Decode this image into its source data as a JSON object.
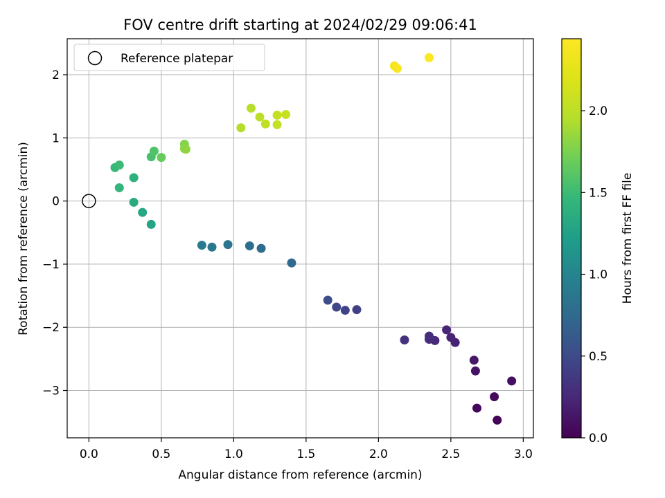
{
  "chart_data": {
    "type": "scatter",
    "title": "FOV centre drift starting at 2024/02/29 09:06:41",
    "xlabel": "Angular distance from reference (arcmin)",
    "ylabel": "Rotation from reference (arcmin)",
    "xlim": [
      -0.15,
      3.07
    ],
    "ylim": [
      -3.75,
      2.57
    ],
    "xticks": [
      0.0,
      0.5,
      1.0,
      1.5,
      2.0,
      2.5,
      3.0
    ],
    "xtick_labels": [
      "0.0",
      "0.5",
      "1.0",
      "1.5",
      "2.0",
      "2.5",
      "3.0"
    ],
    "yticks": [
      -3,
      -2,
      -1,
      0,
      1,
      2
    ],
    "ytick_labels": [
      "−3",
      "−2",
      "−1",
      "0",
      "1",
      "2"
    ],
    "grid": true,
    "colormap": "viridis",
    "colorbar": {
      "label": "Hours from first FF file",
      "range": [
        0.0,
        2.44
      ],
      "ticks": [
        0.0,
        0.5,
        1.0,
        1.5,
        2.0
      ],
      "tick_labels": [
        "0.0",
        "0.5",
        "1.0",
        "1.5",
        "2.0"
      ]
    },
    "legend": {
      "location": "upper-left",
      "entries": [
        {
          "label": "Reference platepar",
          "marker": "open-circle"
        }
      ]
    },
    "reference_point": {
      "x": 0.0,
      "y": 0.0
    },
    "points": [
      {
        "x": 2.82,
        "y": -3.47,
        "hours": 0.02
      },
      {
        "x": 2.68,
        "y": -3.28,
        "hours": 0.04
      },
      {
        "x": 2.8,
        "y": -3.1,
        "hours": 0.06
      },
      {
        "x": 2.92,
        "y": -2.85,
        "hours": 0.09
      },
      {
        "x": 2.67,
        "y": -2.69,
        "hours": 0.11
      },
      {
        "x": 2.66,
        "y": -2.52,
        "hours": 0.14
      },
      {
        "x": 2.53,
        "y": -2.24,
        "hours": 0.2
      },
      {
        "x": 2.5,
        "y": -2.16,
        "hours": 0.22
      },
      {
        "x": 2.47,
        "y": -2.04,
        "hours": 0.24
      },
      {
        "x": 2.39,
        "y": -2.21,
        "hours": 0.26
      },
      {
        "x": 2.35,
        "y": -2.19,
        "hours": 0.28
      },
      {
        "x": 2.35,
        "y": -2.14,
        "hours": 0.29
      },
      {
        "x": 2.18,
        "y": -2.2,
        "hours": 0.31
      },
      {
        "x": 1.85,
        "y": -1.72,
        "hours": 0.42
      },
      {
        "x": 1.77,
        "y": -1.73,
        "hours": 0.45
      },
      {
        "x": 1.71,
        "y": -1.68,
        "hours": 0.48
      },
      {
        "x": 1.65,
        "y": -1.57,
        "hours": 0.52
      },
      {
        "x": 1.4,
        "y": -0.98,
        "hours": 0.75
      },
      {
        "x": 1.19,
        "y": -0.75,
        "hours": 0.78
      },
      {
        "x": 1.11,
        "y": -0.71,
        "hours": 0.81
      },
      {
        "x": 0.96,
        "y": -0.69,
        "hours": 0.85
      },
      {
        "x": 0.85,
        "y": -0.73,
        "hours": 0.88
      },
      {
        "x": 0.78,
        "y": -0.7,
        "hours": 0.9
      },
      {
        "x": 0.43,
        "y": -0.37,
        "hours": 1.28
      },
      {
        "x": 0.37,
        "y": -0.18,
        "hours": 1.31
      },
      {
        "x": 0.31,
        "y": -0.02,
        "hours": 1.34
      },
      {
        "x": 0.31,
        "y": 0.37,
        "hours": 1.4
      },
      {
        "x": 0.21,
        "y": 0.21,
        "hours": 1.44
      },
      {
        "x": 0.18,
        "y": 0.53,
        "hours": 1.47
      },
      {
        "x": 0.21,
        "y": 0.57,
        "hours": 1.5
      },
      {
        "x": 0.43,
        "y": 0.7,
        "hours": 1.55
      },
      {
        "x": 0.45,
        "y": 0.79,
        "hours": 1.58
      },
      {
        "x": 0.5,
        "y": 0.69,
        "hours": 1.68
      },
      {
        "x": 0.66,
        "y": 0.9,
        "hours": 1.78
      },
      {
        "x": 0.66,
        "y": 0.83,
        "hours": 1.8
      },
      {
        "x": 0.67,
        "y": 0.82,
        "hours": 1.82
      },
      {
        "x": 1.05,
        "y": 1.16,
        "hours": 1.95
      },
      {
        "x": 1.12,
        "y": 1.47,
        "hours": 1.97
      },
      {
        "x": 1.18,
        "y": 1.33,
        "hours": 1.99
      },
      {
        "x": 1.22,
        "y": 1.22,
        "hours": 2.01
      },
      {
        "x": 1.3,
        "y": 1.21,
        "hours": 2.03
      },
      {
        "x": 1.3,
        "y": 1.36,
        "hours": 2.05
      },
      {
        "x": 1.36,
        "y": 1.37,
        "hours": 2.07
      },
      {
        "x": 2.11,
        "y": 2.14,
        "hours": 2.38
      },
      {
        "x": 2.13,
        "y": 2.1,
        "hours": 2.4
      },
      {
        "x": 2.35,
        "y": 2.27,
        "hours": 2.43
      }
    ]
  }
}
